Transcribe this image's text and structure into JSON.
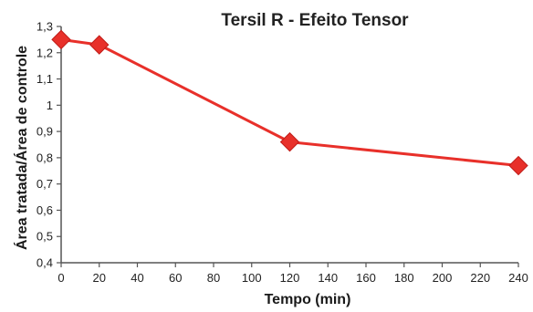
{
  "chart_data": {
    "type": "line",
    "title": "Tersil R - Efeito Tensor",
    "xlabel": "Tempo (min)",
    "ylabel": "Área tratada/Área de controle",
    "xlim": [
      0,
      240
    ],
    "ylim": [
      0.4,
      1.3
    ],
    "x_ticks": [
      "0",
      "20",
      "40",
      "60",
      "80",
      "100",
      "120",
      "140",
      "160",
      "180",
      "200",
      "220",
      "240"
    ],
    "y_ticks": [
      "0,4",
      "0,5",
      "0,6",
      "0,7",
      "0,8",
      "0,9",
      "1",
      "1,1",
      "1,2",
      "1,3"
    ],
    "grid": false,
    "series": [
      {
        "x": [
          0,
          20,
          120,
          240
        ],
        "y": [
          1.25,
          1.23,
          0.86,
          0.77
        ],
        "color": "#e8302a",
        "marker": "diamond"
      }
    ]
  }
}
